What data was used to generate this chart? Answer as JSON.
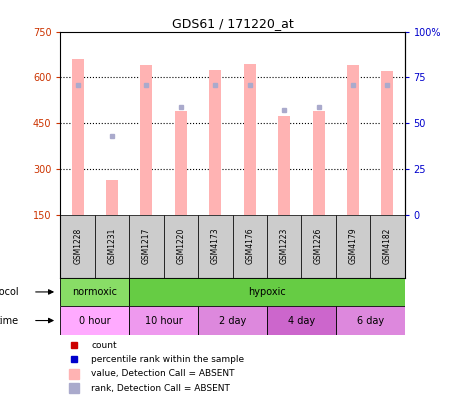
{
  "title": "GDS61 / 171220_at",
  "samples": [
    "GSM1228",
    "GSM1231",
    "GSM1217",
    "GSM1220",
    "GSM4173",
    "GSM4176",
    "GSM1223",
    "GSM1226",
    "GSM4179",
    "GSM4182"
  ],
  "bar_values": [
    660,
    265,
    640,
    490,
    625,
    645,
    475,
    490,
    640,
    620
  ],
  "rank_values": [
    71,
    43,
    71,
    59,
    71,
    71,
    57,
    59,
    71,
    71
  ],
  "bar_color_absent": "#FFB3B3",
  "rank_color_absent": "#AAAACC",
  "ymin": 150,
  "ymax": 750,
  "yticks": [
    150,
    300,
    450,
    600,
    750
  ],
  "y2min": 0,
  "y2max": 100,
  "y2ticks": [
    0,
    25,
    50,
    75,
    100
  ],
  "y2ticklabels": [
    "0",
    "25",
    "50",
    "75",
    "100%"
  ],
  "protocol_labels": [
    "normoxic",
    "hypoxic"
  ],
  "protocol_colors": [
    "#88DD66",
    "#66CC44"
  ],
  "time_labels": [
    "0 hour",
    "10 hour",
    "2 day",
    "4 day",
    "6 day"
  ],
  "time_colors": [
    "#FFAAFF",
    "#EE99EE",
    "#DD88DD",
    "#CC66CC",
    "#DD88DD"
  ],
  "legend_items": [
    {
      "color": "#CC0000",
      "label": "count",
      "marker": "s"
    },
    {
      "color": "#0000CC",
      "label": "percentile rank within the sample",
      "marker": "s"
    },
    {
      "color": "#FFB3B3",
      "label": "value, Detection Call = ABSENT",
      "marker": "s"
    },
    {
      "color": "#AAAACC",
      "label": "rank, Detection Call = ABSENT",
      "marker": "s"
    }
  ]
}
